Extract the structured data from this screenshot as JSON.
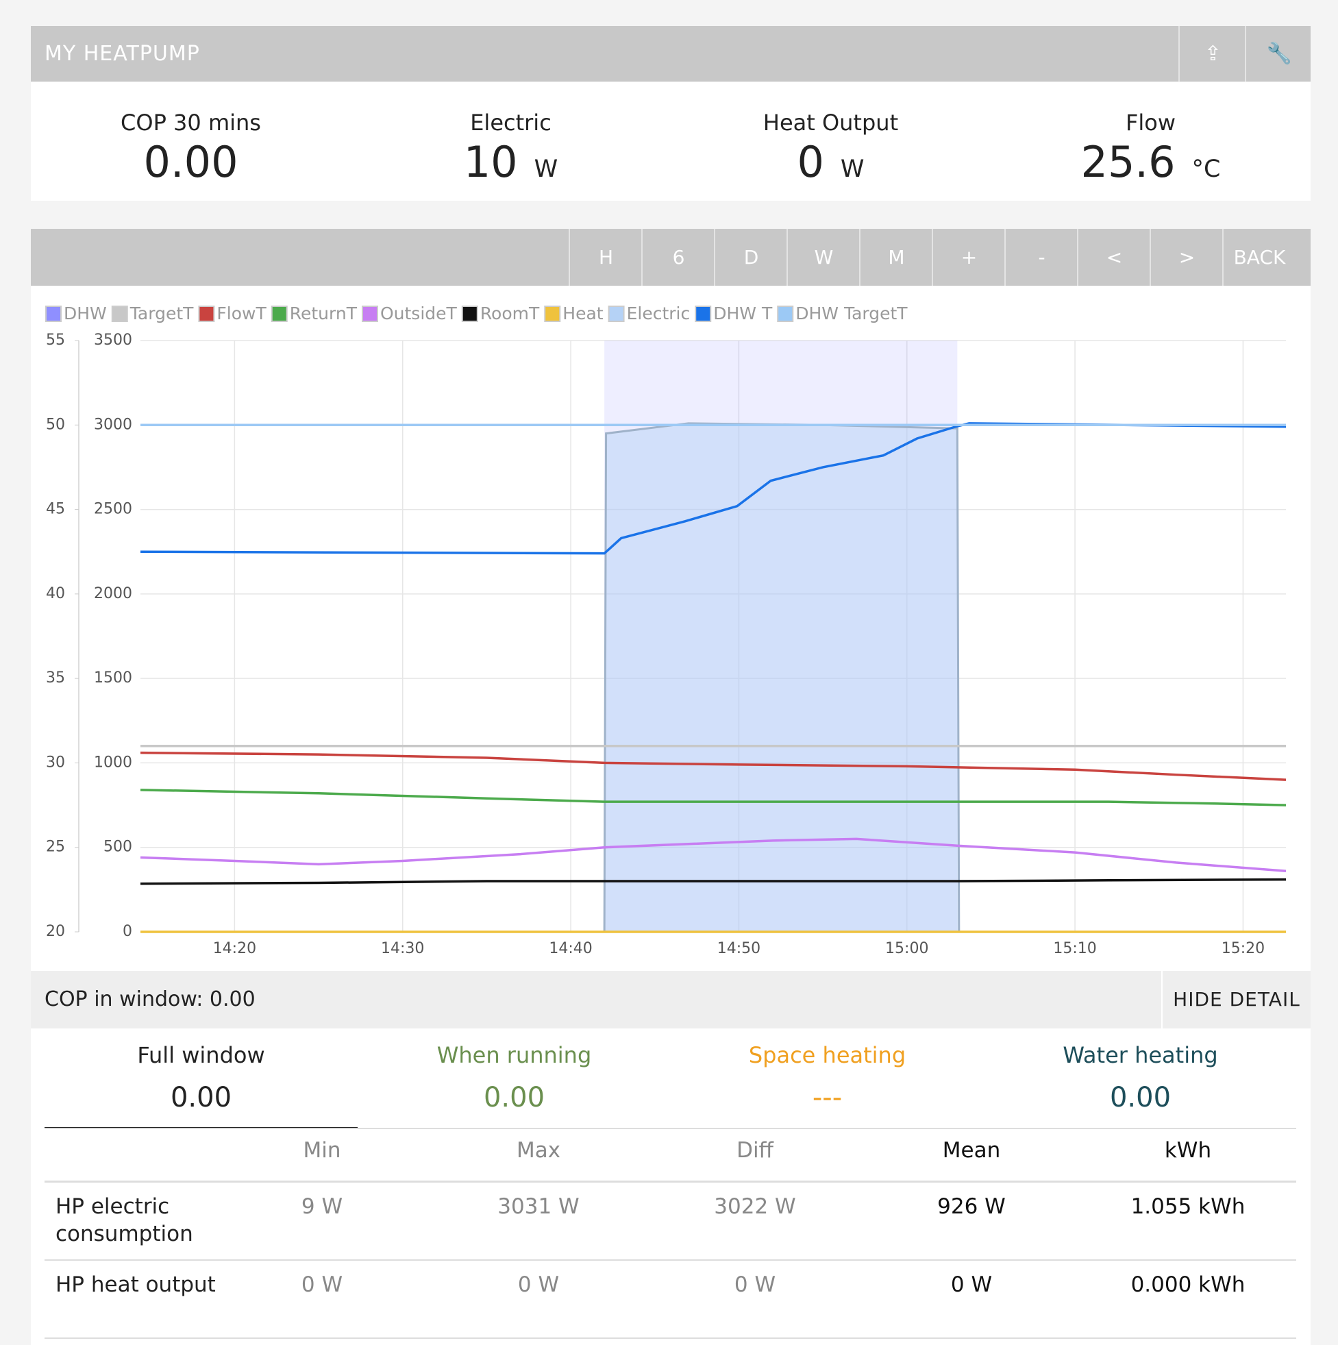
{
  "header": {
    "title": "MY HEATPUMP"
  },
  "stats": [
    {
      "label": "COP 30 mins",
      "value": "0.00"
    },
    {
      "label": "Electric",
      "value": "10",
      "unit": "W"
    },
    {
      "label": "Heat Output",
      "value": "0",
      "unit": "W"
    },
    {
      "label": "Flow",
      "value": "25.6",
      "unit": "°C"
    }
  ],
  "toolbar": [
    "H",
    "6",
    "D",
    "W",
    "M",
    "+",
    "-",
    "<",
    ">",
    "BACK"
  ],
  "chart_data": {
    "type": "line",
    "grid": true,
    "xlim": [
      "14:14:24",
      "15:22:33"
    ],
    "xticks": [
      "14:20",
      "14:30",
      "14:40",
      "14:50",
      "15:00",
      "15:10",
      "15:20"
    ],
    "ylim": [
      20,
      55
    ],
    "yticks": [
      20,
      25,
      30,
      35,
      40,
      45,
      50,
      55
    ],
    "y2lim": [
      0,
      3500
    ],
    "y2ticks": [
      0,
      500,
      1000,
      1500,
      2000,
      2500,
      3000,
      3500
    ],
    "series": [
      {
        "name": "DHW",
        "color": "#8f8fff",
        "style": "band",
        "x": [
          "14:42:00",
          "15:03:00"
        ]
      },
      {
        "name": "TargetT",
        "color": "#c8c8c8",
        "x": [
          "14:14:24",
          "15:22:33"
        ],
        "values": [
          31,
          31
        ]
      },
      {
        "name": "FlowT",
        "color": "#c9433f",
        "x": [
          "14:14:24",
          "14:25:00",
          "14:35:00",
          "14:42:00",
          "14:50:00",
          "15:00:00",
          "15:10:00",
          "15:16:00",
          "15:22:33"
        ],
        "values": [
          30.6,
          30.5,
          30.3,
          30.0,
          29.9,
          29.8,
          29.6,
          29.3,
          29.0
        ]
      },
      {
        "name": "ReturnT",
        "color": "#4caa4c",
        "x": [
          "14:14:24",
          "14:25:00",
          "14:35:00",
          "14:42:00",
          "15:00:00",
          "15:12:00",
          "15:18:00",
          "15:22:33"
        ],
        "values": [
          28.4,
          28.2,
          27.9,
          27.7,
          27.7,
          27.7,
          27.6,
          27.5
        ]
      },
      {
        "name": "OutsideT",
        "color": "#c77ef2",
        "x": [
          "14:14:24",
          "14:20:00",
          "14:25:00",
          "14:30:00",
          "14:37:00",
          "14:42:00",
          "14:47:00",
          "14:52:00",
          "14:57:00",
          "15:03:00",
          "15:10:00",
          "15:16:00",
          "15:22:33"
        ],
        "values": [
          24.4,
          24.2,
          24.0,
          24.2,
          24.6,
          25.0,
          25.2,
          25.4,
          25.5,
          25.1,
          24.7,
          24.1,
          23.6
        ]
      },
      {
        "name": "RoomT",
        "color": "#111111",
        "x": [
          "14:14:24",
          "14:25:00",
          "14:35:00",
          "14:42:00",
          "14:55:00",
          "15:03:00",
          "15:12:00",
          "15:22:33"
        ],
        "values": [
          22.85,
          22.9,
          23.0,
          23.0,
          23.0,
          23.0,
          23.05,
          23.1
        ]
      },
      {
        "name": "Heat",
        "color": "#efc23d",
        "axis": "y2",
        "x": [
          "14:14:24",
          "15:22:33"
        ],
        "values": [
          0,
          0
        ]
      },
      {
        "name": "Electric",
        "color": "#b5d2f6",
        "style": "area",
        "axis": "y2",
        "x": [
          "14:14:24",
          "14:42:00",
          "14:42:06",
          "14:47:00",
          "14:55:00",
          "15:03:00",
          "15:03:06",
          "15:22:33"
        ],
        "values": [
          0,
          0,
          2950,
          3010,
          3000,
          2980,
          0,
          0
        ]
      },
      {
        "name": "DHW T",
        "color": "#1a73e8",
        "x": [
          "14:14:24",
          "14:42:00",
          "14:43:00",
          "14:46:48",
          "14:49:54",
          "14:51:54",
          "14:55:00",
          "14:58:36",
          "15:00:36",
          "15:02:54",
          "15:03:42",
          "15:22:33"
        ],
        "values": [
          42.5,
          42.4,
          43.3,
          44.3,
          45.2,
          46.7,
          47.5,
          48.2,
          49.2,
          49.9,
          50.1,
          49.9
        ]
      },
      {
        "name": "DHW TargetT",
        "color": "#9cc9f5",
        "x": [
          "14:14:24",
          "15:22:33"
        ],
        "values": [
          50,
          50
        ]
      }
    ]
  },
  "window": {
    "label": "COP in window:",
    "value": "0.00",
    "button": "HIDE DETAIL"
  },
  "tabs": [
    {
      "label": "Full window",
      "value": "0.00"
    },
    {
      "label": "When running",
      "value": "0.00"
    },
    {
      "label": "Space heating",
      "value": "---"
    },
    {
      "label": "Water heating",
      "value": "0.00"
    }
  ],
  "table": {
    "header": [
      "Min",
      "Max",
      "Diff",
      "Mean",
      "kWh"
    ],
    "rows": [
      [
        "HP electric consumption",
        "9 W",
        "3031 W",
        "3022 W",
        "926 W",
        "1.055 kWh"
      ],
      [
        "HP heat output",
        "0 W",
        "0 W",
        "0 W",
        "0 W",
        "0.000 kWh"
      ]
    ]
  }
}
